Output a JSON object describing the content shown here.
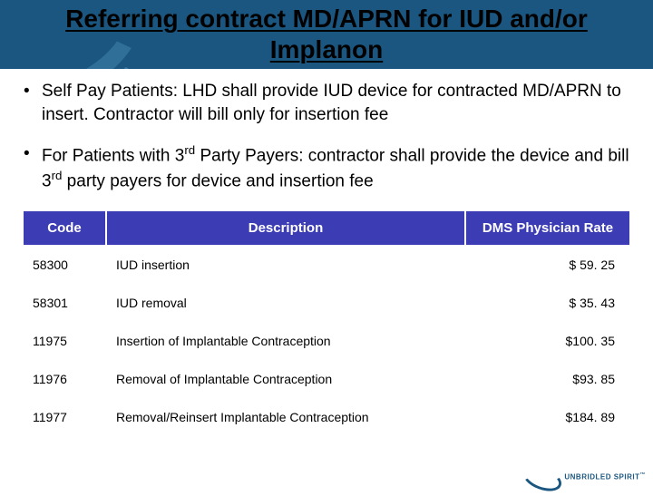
{
  "title": "Referring contract MD/APRN for IUD and/or Implanon",
  "bullets": [
    "Self Pay Patients: LHD shall provide IUD device for contracted MD/APRN to insert. Contractor will bill only for insertion fee",
    "For Patients with 3<sup>rd</sup> Party Payers:  contractor shall provide the device and bill 3<sup>rd</sup> party payers for device and insertion fee"
  ],
  "table": {
    "header_bg": "#3c3cb5",
    "header_fg": "#ffffff",
    "columns": [
      "Code",
      "Description",
      "DMS Physician Rate"
    ],
    "rows": [
      {
        "code": "58300",
        "desc": "IUD insertion",
        "rate": "$  59. 25"
      },
      {
        "code": "58301",
        "desc": "IUD removal",
        "rate": "$  35. 43"
      },
      {
        "code": "11975",
        "desc": "Insertion of Implantable Contraception",
        "rate": "$100. 35"
      },
      {
        "code": "11976",
        "desc": "Removal of Implantable Contraception",
        "rate": "$93. 85"
      },
      {
        "code": "11977",
        "desc": "Removal/Reinsert Implantable Contraception",
        "rate": "$184. 89"
      }
    ]
  },
  "footer": {
    "brand": "UNBRIDLED SPIRIT",
    "tm": "™"
  },
  "colors": {
    "band": "#1a5680",
    "text": "#000000"
  }
}
